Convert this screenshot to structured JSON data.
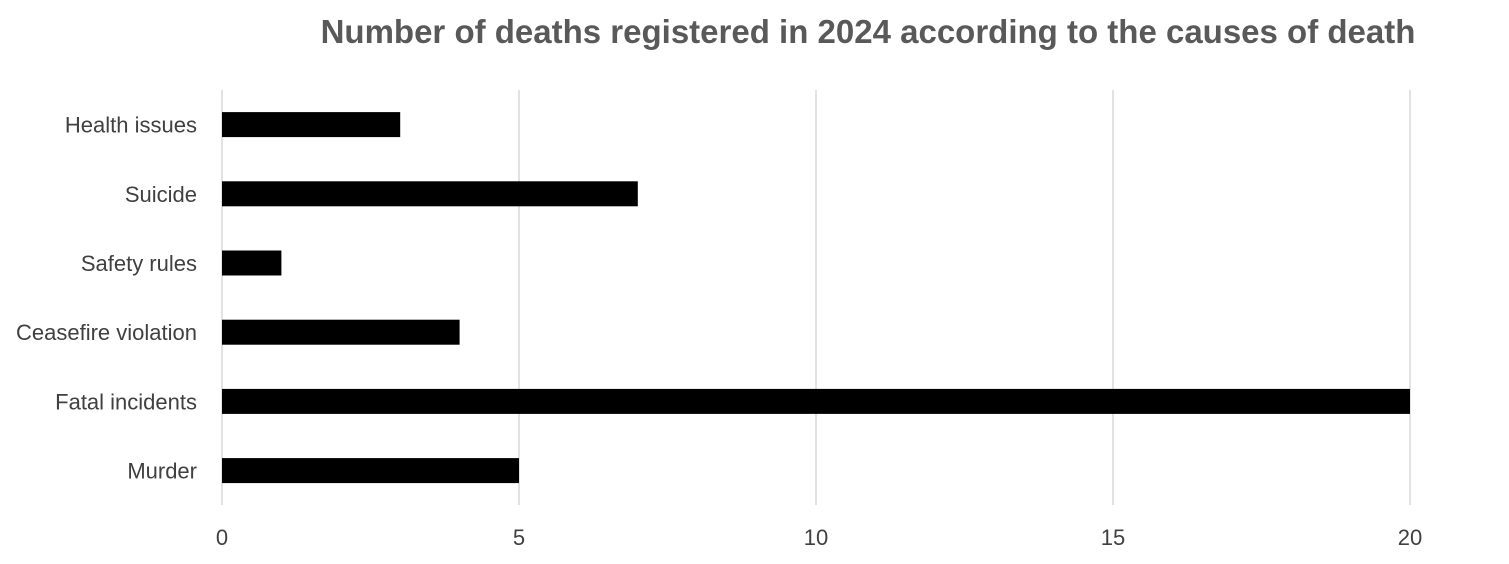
{
  "chart_data": {
    "type": "bar",
    "orientation": "horizontal",
    "title": "Number of deaths registered in 2024 according to the causes of death",
    "categories": [
      "Health issues",
      "Suicide",
      "Safety rules",
      "Ceasefire violation",
      "Fatal incidents",
      "Murder"
    ],
    "values": [
      3,
      7,
      1,
      4,
      20,
      5
    ],
    "xlim": [
      0,
      20
    ],
    "xticks": [
      0,
      5,
      10,
      15,
      20
    ],
    "grid": "vertical",
    "legend": "none",
    "bar_color": "#000000",
    "grid_color": "#d9d9d9",
    "title_color": "#595959",
    "label_color": "#404040"
  }
}
